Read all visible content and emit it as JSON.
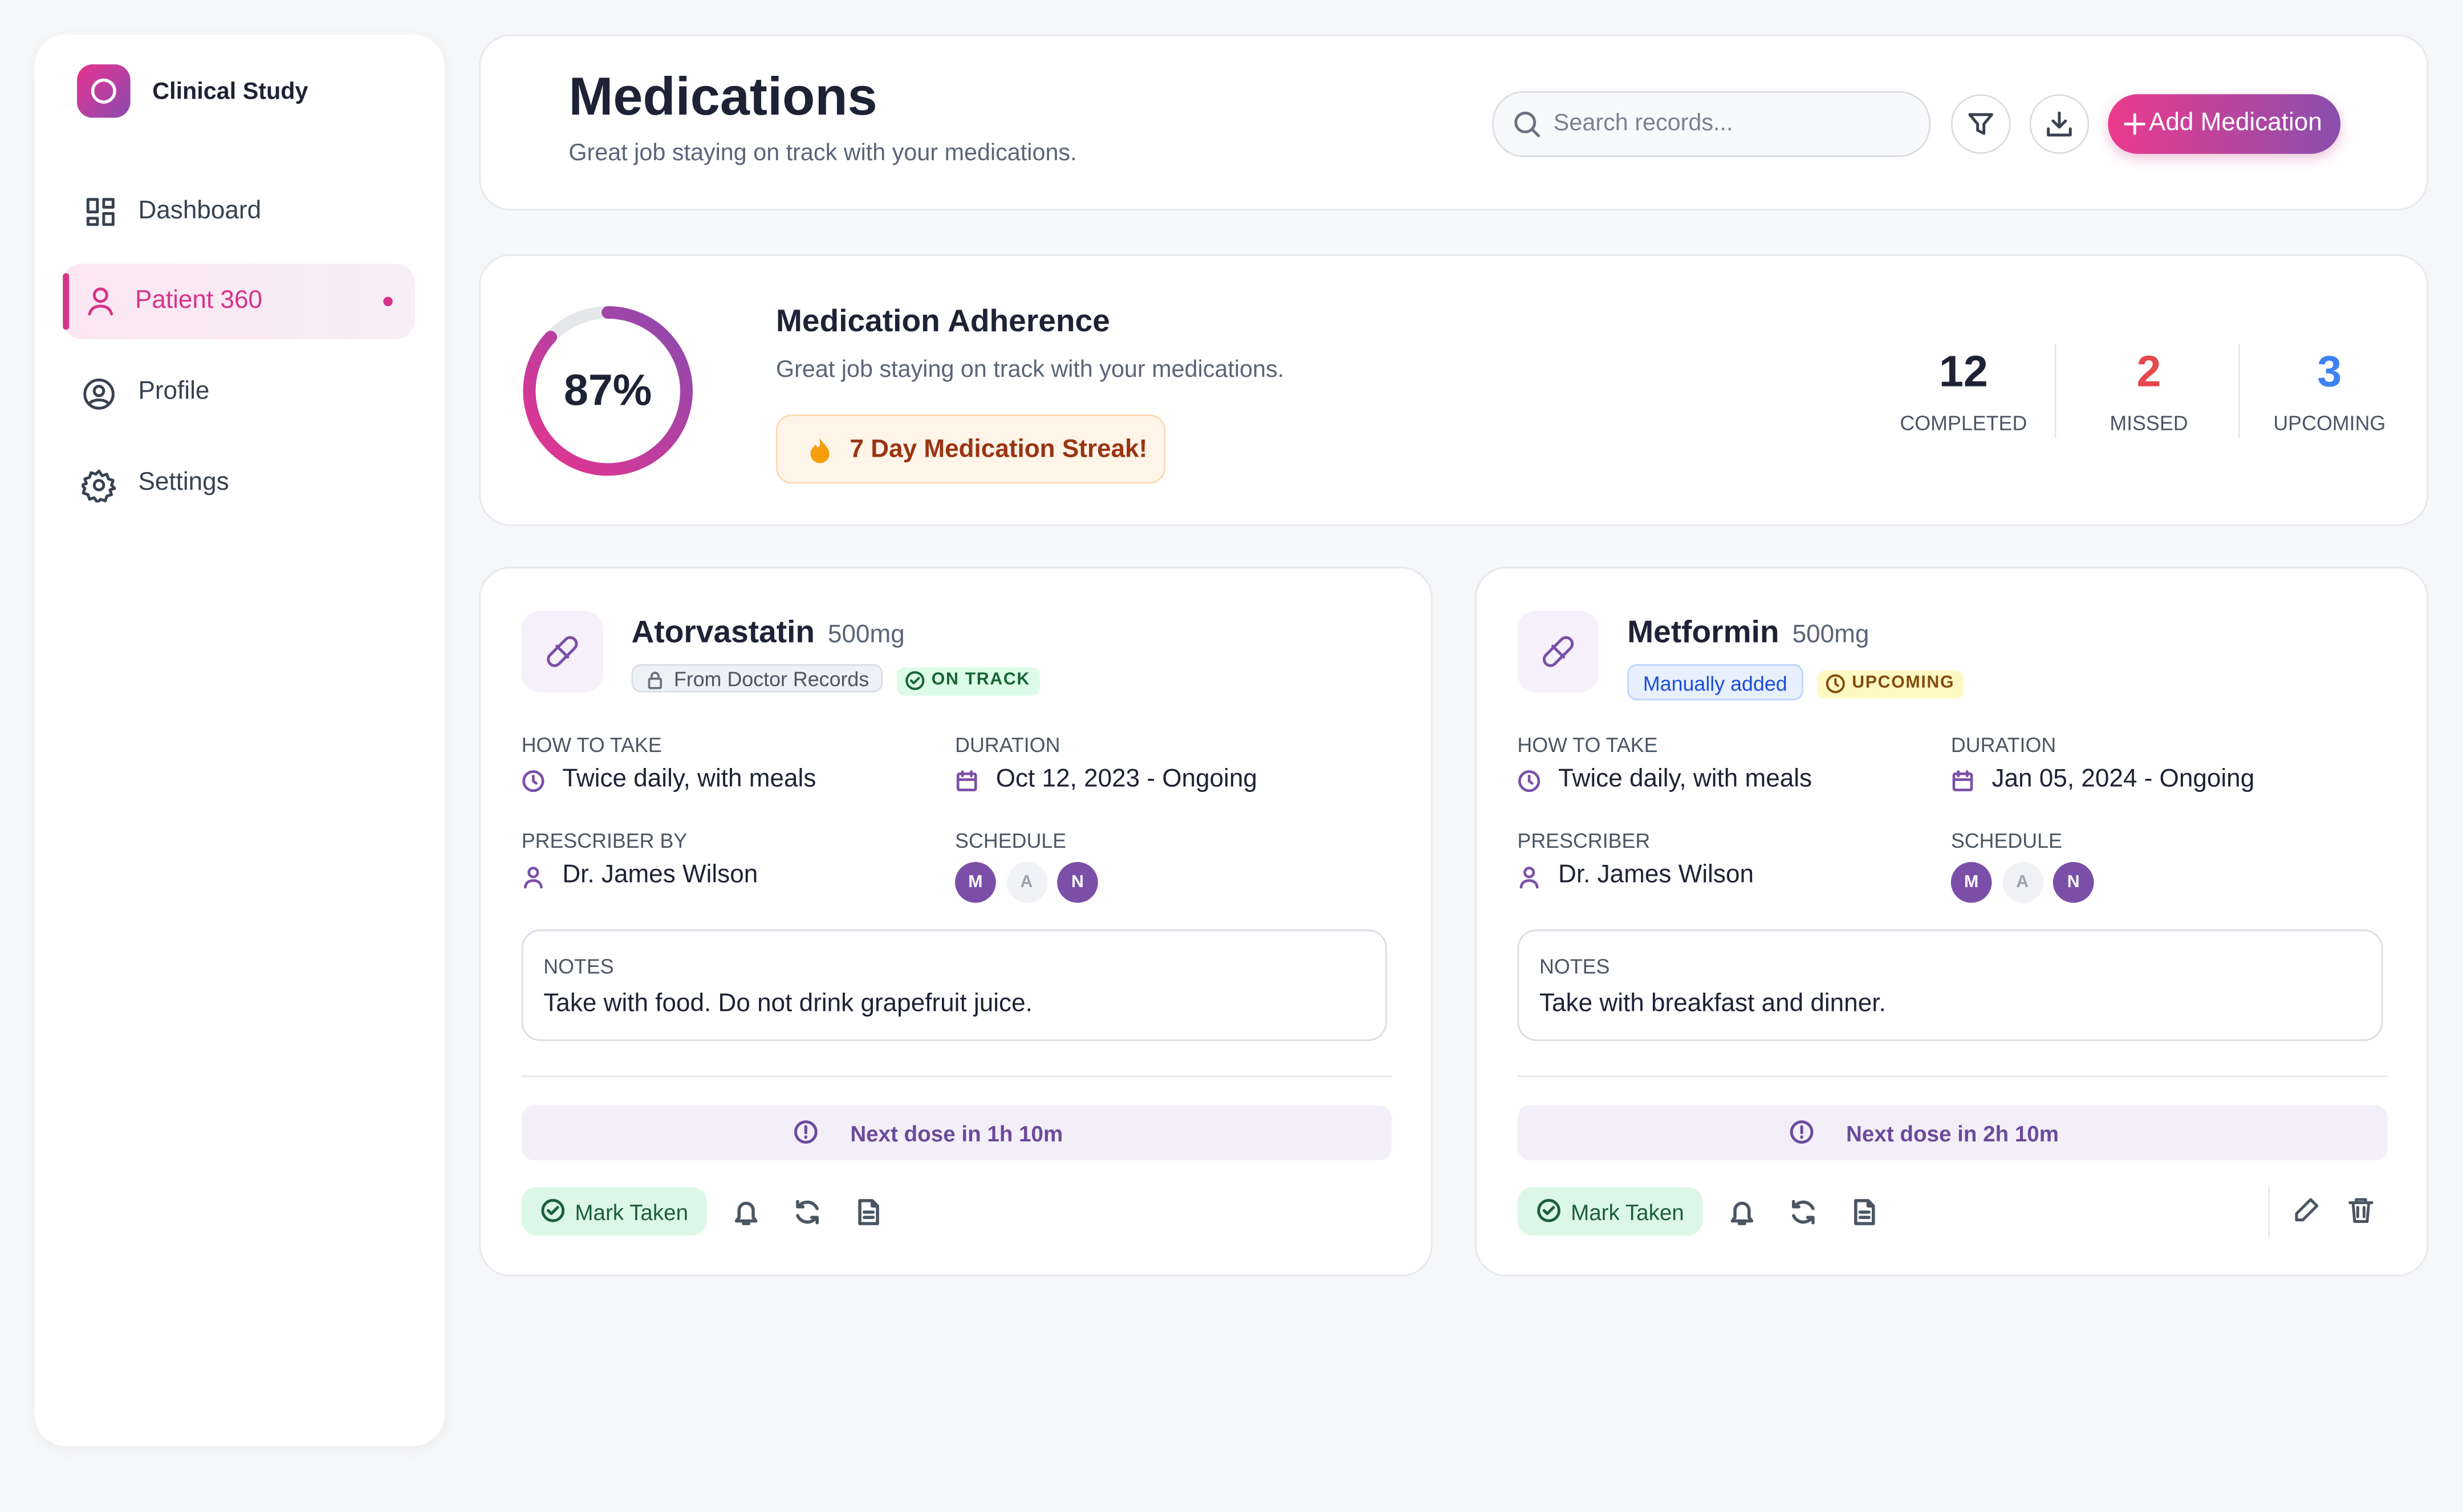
{
  "sidebar": {
    "brand": "Clinical Study",
    "nav": [
      "Dashboard",
      "Patient 360",
      "Profile",
      "Settings"
    ]
  },
  "header": {
    "title": "Medications",
    "subtitle": "Great job staying on track with your medications.",
    "search_placeholder": "Search records...",
    "add_button": "Add Medication"
  },
  "adherence": {
    "percent": {
      "value": 87,
      "label": "87%"
    },
    "title": "Medication Adherence",
    "subtitle": "Great job staying on track with your medications.",
    "streak": "7 Day Medication Streak!",
    "stats": [
      {
        "value": 12,
        "label": "COMPLETED",
        "color": "#1e2235"
      },
      {
        "value": 2,
        "label": "MISSED",
        "color": "#e5484d"
      },
      {
        "value": 3,
        "label": "UPCOMING",
        "color": "#3b82f6"
      }
    ]
  },
  "medications": [
    {
      "name": "Atorvastatin",
      "dose": "500mg",
      "source": "From Doctor Records",
      "status": "ON TRACK",
      "how_to_take_label": "HOW TO TAKE",
      "how_to_take": "Twice daily, with meals",
      "duration_label": "DURATION",
      "duration": "Oct 12, 2023 - Ongoing",
      "prescriber_label": "PRESCRIBER BY",
      "prescriber": "Dr. James Wilson",
      "schedule_label": "SCHEDULE",
      "schedule": [
        {
          "label": "M",
          "active": true
        },
        {
          "label": "A",
          "active": false
        },
        {
          "label": "N",
          "active": true
        }
      ],
      "notes_label": "NOTES",
      "notes": "Take with food. Do not drink grapefruit juice.",
      "next_dose": "Next dose in 1h 10m",
      "mark_taken": "Mark Taken"
    },
    {
      "name": "Metformin",
      "dose": "500mg",
      "source": "Manually added",
      "status": "UPCOMING",
      "how_to_take_label": "HOW TO TAKE",
      "how_to_take": "Twice daily, with meals",
      "duration_label": "DURATION",
      "duration": "Jan 05, 2024 - Ongoing",
      "prescriber_label": "PRESCRIBER",
      "prescriber": "Dr. James Wilson",
      "schedule_label": "SCHEDULE",
      "schedule": [
        {
          "label": "M",
          "active": true
        },
        {
          "label": "A",
          "active": false
        },
        {
          "label": "N",
          "active": true
        }
      ],
      "notes_label": "NOTES",
      "notes": "Take with breakfast and dinner.",
      "next_dose": "Next dose in 2h 10m",
      "mark_taken": "Mark Taken"
    }
  ]
}
